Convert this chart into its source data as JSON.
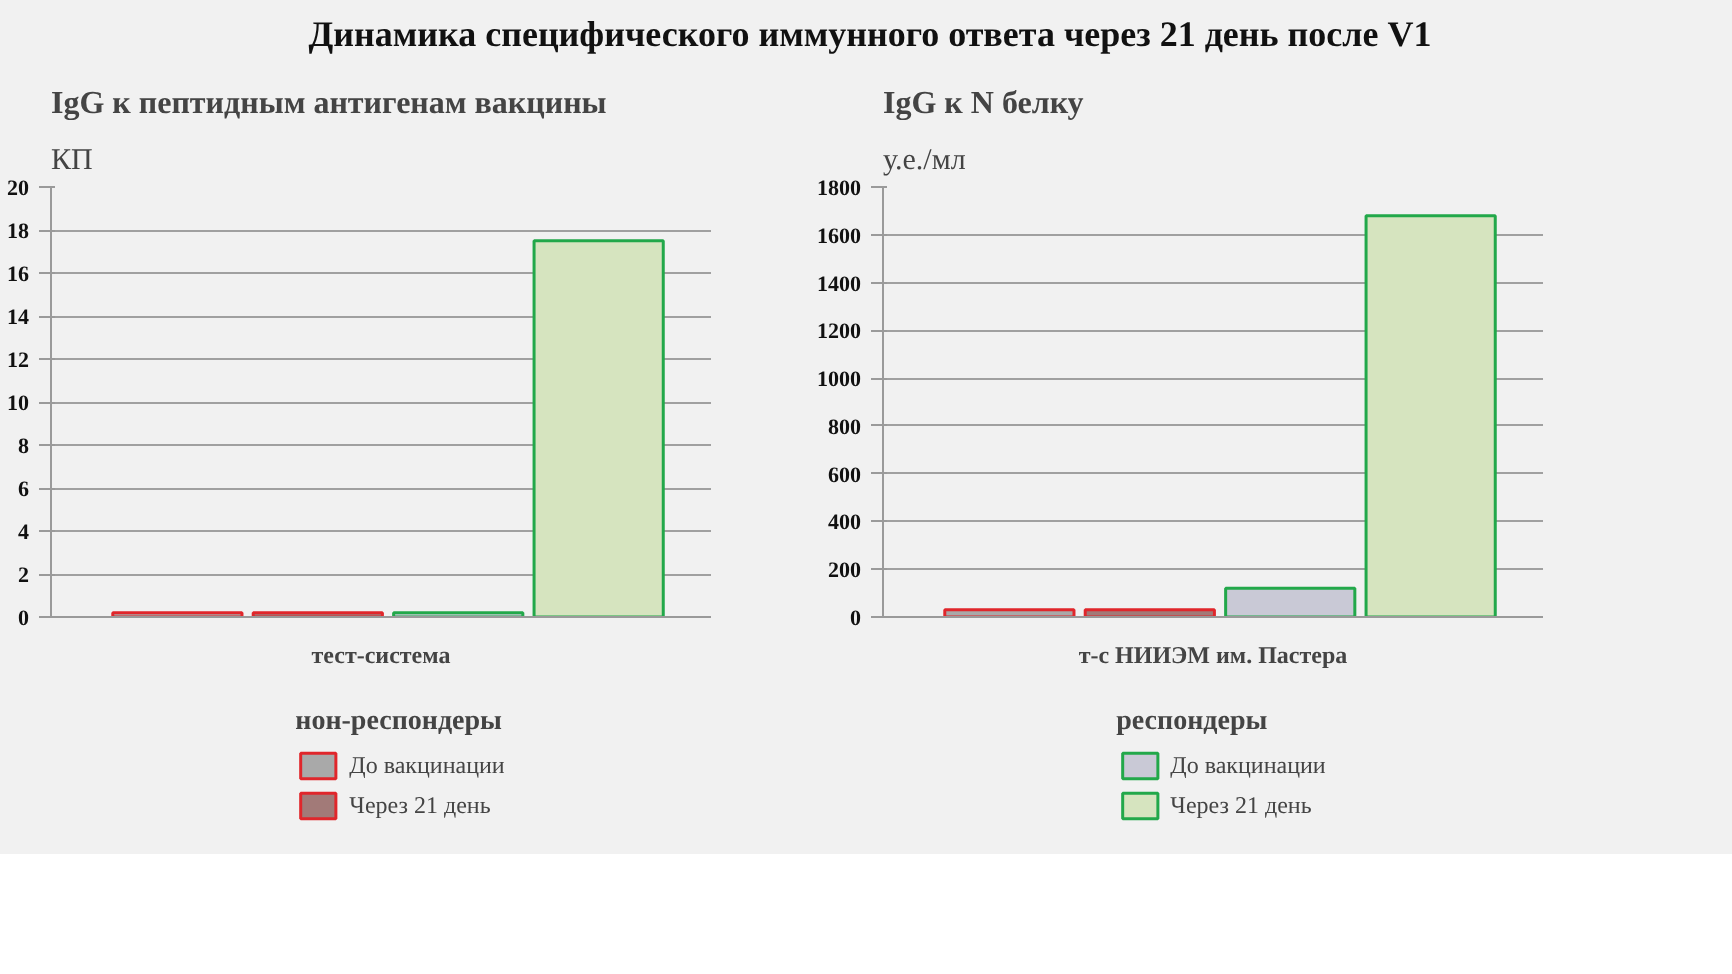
{
  "chart_data": [
    {
      "type": "bar",
      "title": "Динамика специфического иммунного ответа через 21 день после V1",
      "subtitle": "IgG к пептидным антигенам вакцины",
      "ylabel": "КП",
      "xlabel": "тест-система",
      "categories": [
        null,
        null,
        null,
        null
      ],
      "series": [
        {
          "name": "До вакцинации",
          "color": "#a9a9a9",
          "values": [
            0.2,
            null,
            null,
            null
          ]
        },
        {
          "name": "Через 21 день",
          "color": "#a27a78",
          "values": [
            null,
            0.2,
            null,
            null
          ]
        },
        {
          "color": "#c9c9d6",
          "values": [
            null,
            null,
            0.2,
            null
          ]
        },
        {
          "color": "#d6e4bf",
          "values": [
            null,
            null,
            null,
            17.5
          ]
        }
      ],
      "ylim": [
        0,
        20
      ],
      "yticks": [
        0,
        2,
        4,
        6,
        8,
        10,
        12,
        14,
        16,
        18,
        20
      ],
      "grid": "y",
      "tick_labels": "y",
      "legend": "bottom",
      "legend_title": "нон-респондеры"
    },
    {
      "type": "bar",
      "title": "IgG к N белку",
      "ylabel": "у.е./мл",
      "xlabel": "т-с НИИЭМ им. Пастера",
      "categories": [
        null,
        null,
        null,
        null
      ],
      "series": [
        {
          "color": "#a9a9a9",
          "values": [
            30,
            null,
            null,
            null
          ]
        },
        {
          "color": "#a27a78",
          "values": [
            null,
            30,
            null,
            null
          ]
        },
        {
          "name": "До вакцинации",
          "color": "#c9c9d6",
          "values": [
            null,
            null,
            120,
            null
          ]
        },
        {
          "name": "Через 21 день",
          "color": "#d6e4bf",
          "values": [
            null,
            null,
            null,
            1680
          ]
        }
      ],
      "ylim": [
        0,
        1800
      ],
      "yticks": [
        0,
        200,
        400,
        600,
        800,
        1000,
        1200,
        1400,
        1600,
        1800
      ],
      "grid": "y",
      "tick_labels": "y",
      "legend": "bottom",
      "legend_title": "респондеры"
    }
  ]
}
